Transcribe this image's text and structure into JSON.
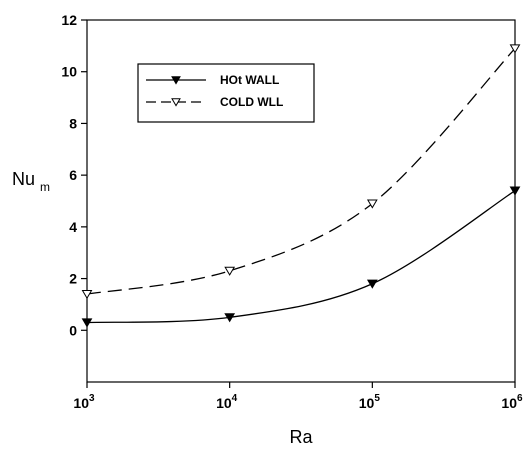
{
  "chart_data": {
    "type": "line",
    "x_scale": "log",
    "x": [
      1000,
      10000,
      100000,
      1000000
    ],
    "x_tick_labels": [
      {
        "base": "10",
        "exp": "3"
      },
      {
        "base": "10",
        "exp": "4"
      },
      {
        "base": "10",
        "exp": "5"
      },
      {
        "base": "10",
        "exp": "6"
      }
    ],
    "y_ticks": [
      "0",
      "2",
      "4",
      "6",
      "8",
      "10",
      "12"
    ],
    "ylim": [
      -2,
      12
    ],
    "xlabel": "Ra",
    "ylabel": {
      "main": "Nu",
      "sub": "m"
    },
    "grid": false,
    "legend_position": "top-left",
    "series": [
      {
        "name": "HOt WALL",
        "values": [
          0.3,
          0.5,
          1.8,
          5.4
        ],
        "line_style": "solid",
        "marker": "filled-down-triangle",
        "color": "#000000"
      },
      {
        "name": "COLD WLL",
        "values": [
          1.4,
          2.3,
          4.9,
          10.9
        ],
        "line_style": "dashed",
        "marker": "open-down-triangle",
        "color": "#000000"
      }
    ]
  }
}
